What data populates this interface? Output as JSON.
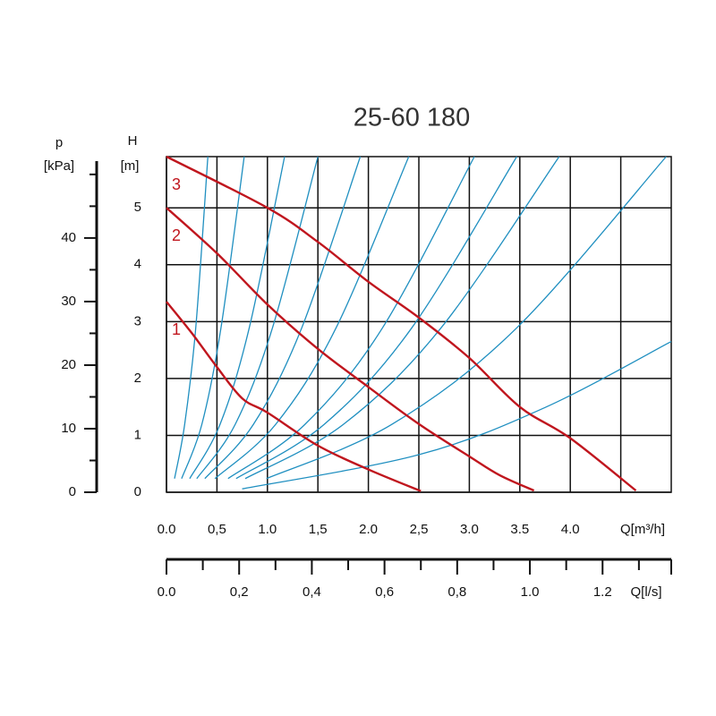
{
  "chart_data": {
    "type": "line",
    "title": "25-60 180",
    "ylabel": "H",
    "yunit": "[m]",
    "y2label": "p",
    "y2unit": "[kPa]",
    "xlabel": "Q[m³/h]",
    "x2label": "Q[l/s]",
    "xlim": [
      0,
      5
    ],
    "ylim": [
      0,
      5.9
    ],
    "y2lim": [
      0,
      52.8
    ],
    "x2lim": [
      0,
      1.389
    ],
    "xticks": [
      {
        "value": 0,
        "label": "0.0"
      },
      {
        "value": 0.5,
        "label": "0,5"
      },
      {
        "value": 1,
        "label": "1.0"
      },
      {
        "value": 1.5,
        "label": "1,5"
      },
      {
        "value": 2,
        "label": "2.0"
      },
      {
        "value": 2.5,
        "label": "2,5"
      },
      {
        "value": 3,
        "label": "3.0"
      },
      {
        "value": 3.5,
        "label": "3.5"
      },
      {
        "value": 4,
        "label": "4.0"
      },
      {
        "value": 4.5,
        "label": null
      }
    ],
    "yticks": [
      0,
      1,
      2,
      3,
      4,
      5
    ],
    "y2ticks": [
      0,
      10,
      20,
      30,
      40
    ],
    "y2minor_ticks": [
      5,
      15,
      25,
      35,
      45,
      50
    ],
    "x2ticks": [
      {
        "value": 0,
        "label": "0.0"
      },
      {
        "value": 0.2,
        "label": "0,2"
      },
      {
        "value": 0.4,
        "label": "0,4"
      },
      {
        "value": 0.6,
        "label": "0,6"
      },
      {
        "value": 0.8,
        "label": "0,8"
      },
      {
        "value": 1,
        "label": "1.0"
      },
      {
        "value": 1.2,
        "label": "1.2"
      }
    ],
    "x2minor_ticks": [
      0.1,
      0.3,
      0.5,
      0.7,
      0.9,
      1.1,
      1.3
    ],
    "grid": true,
    "series": [
      {
        "color": "#1f8fc0",
        "x": [
          0.08,
          0.18,
          0.29,
          0.41
        ],
        "values": [
          0.24,
          1.19,
          2.89,
          5.9
        ]
      },
      {
        "color": "#1f8fc0",
        "x": [
          0.15,
          0.35,
          0.54,
          0.77
        ],
        "values": [
          0.24,
          1.19,
          2.89,
          5.9
        ]
      },
      {
        "color": "#1f8fc0",
        "x": [
          0.23,
          0.53,
          0.82,
          1.17
        ],
        "values": [
          0.24,
          1.19,
          2.89,
          5.9
        ]
      },
      {
        "color": "#1f8fc0",
        "x": [
          0.3,
          0.68,
          1.05,
          1.5
        ],
        "values": [
          0.24,
          1.19,
          2.89,
          5.9
        ]
      },
      {
        "color": "#1f8fc0",
        "x": [
          0.38,
          0.86,
          1.34,
          1.92
        ],
        "values": [
          0.24,
          1.19,
          2.89,
          5.9
        ]
      },
      {
        "color": "#1f8fc0",
        "x": [
          0.48,
          1.08,
          1.68,
          2.4
        ],
        "values": [
          0.24,
          1.19,
          2.89,
          5.9
        ]
      },
      {
        "color": "#1f8fc0",
        "x": [
          0.61,
          1.37,
          2.14,
          3.05
        ],
        "values": [
          0.24,
          1.19,
          2.89,
          5.9
        ]
      },
      {
        "color": "#1f8fc0",
        "x": [
          0.69,
          1.56,
          2.43,
          3.47
        ],
        "values": [
          0.24,
          1.19,
          2.89,
          5.9
        ]
      },
      {
        "color": "#1f8fc0",
        "x": [
          0.78,
          1.75,
          2.72,
          3.89
        ],
        "values": [
          0.24,
          1.19,
          2.89,
          5.9
        ]
      },
      {
        "color": "#1f8fc0",
        "x": [
          0.99,
          2.23,
          3.47,
          4.95
        ],
        "values": [
          0.24,
          1.19,
          2.89,
          5.9
        ]
      },
      {
        "color": "#1f8fc0",
        "x": [
          0.75,
          2.5,
          3.75,
          5
        ],
        "values": [
          0.06,
          0.66,
          1.49,
          2.65
        ]
      },
      {
        "name": "1",
        "color": "#c0161e",
        "x": [
          0,
          0.25,
          0.5,
          0.75,
          1,
          1.5,
          2,
          2.52
        ],
        "values": [
          3.35,
          2.8,
          2.2,
          1.65,
          1.4,
          0.82,
          0.4,
          0.02
        ]
      },
      {
        "name": "2",
        "color": "#c0161e",
        "x": [
          0,
          0.5,
          1,
          1.5,
          2,
          2.5,
          3,
          3.3,
          3.64
        ],
        "values": [
          5.0,
          4.2,
          3.3,
          2.52,
          1.85,
          1.2,
          0.63,
          0.3,
          0.03
        ]
      },
      {
        "name": "3",
        "color": "#c0161e",
        "x": [
          0,
          1,
          1.5,
          2,
          2.5,
          3,
          3.5,
          4,
          4.65
        ],
        "values": [
          5.9,
          5.0,
          4.4,
          3.7,
          3.07,
          2.36,
          1.5,
          0.95,
          0.03
        ]
      }
    ]
  }
}
